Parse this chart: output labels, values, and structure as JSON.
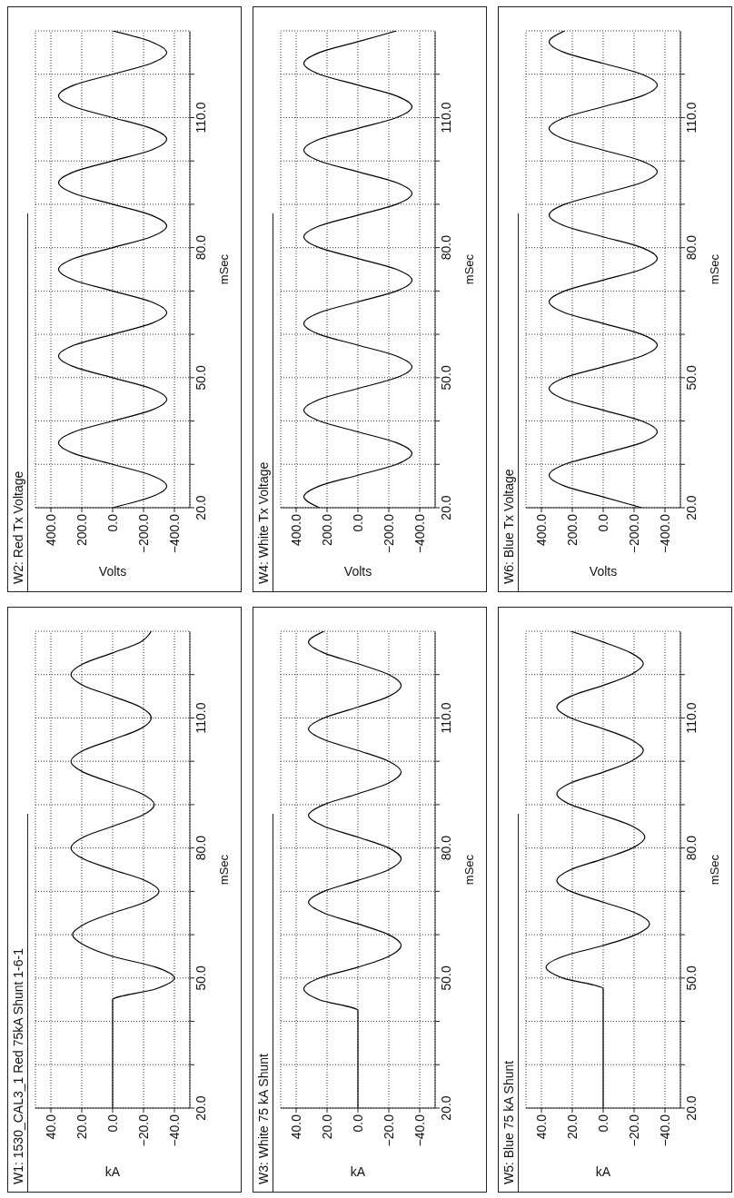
{
  "chart_data": [
    {
      "type": "line",
      "title": "W1: 1530_CAL3_1 Red 75kA Shunt 1-6-1",
      "xlabel": "kA",
      "ylabel": "mSec",
      "grid": true,
      "series": [
        {
          "color": "#000000",
          "x": [
            0,
            0,
            -28,
            -40,
            -28,
            0,
            18,
            26,
            18,
            0,
            -21,
            -30,
            -21,
            0,
            19,
            27,
            19,
            0,
            -19,
            -27,
            -19,
            0,
            19,
            27,
            19,
            0,
            -18,
            -25,
            -18,
            0,
            19,
            27,
            19,
            0,
            -18,
            -25
          ],
          "values": [
            20,
            45,
            47.5,
            50,
            52.5,
            55,
            57.5,
            60,
            62.5,
            65,
            67.5,
            70,
            72.5,
            75,
            77.5,
            80,
            82.5,
            85,
            87.5,
            90,
            92.5,
            95,
            97.5,
            100,
            102.5,
            105,
            107.5,
            110,
            112.5,
            115,
            117.5,
            120,
            122.5,
            125,
            127.5,
            130
          ]
        }
      ],
      "ylim": [
        20,
        130
      ],
      "yticks": [
        {
          "value": 20,
          "label": "20.0"
        },
        {
          "value": 30,
          "label": null
        },
        {
          "value": 40,
          "label": null
        },
        {
          "value": 50,
          "label": "50.0"
        },
        {
          "value": 60,
          "label": null
        },
        {
          "value": 70,
          "label": null
        },
        {
          "value": 80,
          "label": "80.0"
        },
        {
          "value": 90,
          "label": null
        },
        {
          "value": 100,
          "label": null
        },
        {
          "value": 110,
          "label": "110.0"
        },
        {
          "value": 120,
          "label": null
        }
      ],
      "xlim": [
        50,
        -50
      ],
      "xticks": [
        {
          "value": 40,
          "label": "40.0"
        },
        {
          "value": 20,
          "label": "20.0"
        },
        {
          "value": 0,
          "label": "0.0"
        },
        {
          "value": -20,
          "label": "−20.0"
        },
        {
          "value": -40,
          "label": "−40.0"
        }
      ]
    },
    {
      "type": "line",
      "title": "W2: Red Tx Voltage",
      "xlabel": "Volts",
      "ylabel": "mSec",
      "grid": true,
      "series": [
        {
          "color": "#000000",
          "x": [
            0,
            -250,
            -350,
            -250,
            0,
            250,
            350,
            250,
            0,
            -250,
            -350,
            -250,
            0,
            250,
            350,
            250,
            0,
            -250,
            -350,
            -250,
            0,
            250,
            350,
            250,
            0,
            -250,
            -350,
            -250,
            0,
            250,
            350,
            250,
            0,
            -250,
            -350,
            -250,
            0,
            250,
            350,
            250,
            0,
            -250,
            -350,
            -250,
            0
          ],
          "values": [
            20,
            22.5,
            25,
            27.5,
            30,
            32.5,
            35,
            37.5,
            40,
            42.5,
            45,
            47.5,
            50,
            52.5,
            55,
            57.5,
            60,
            62.5,
            65,
            67.5,
            70,
            72.5,
            75,
            77.5,
            80,
            82.5,
            85,
            87.5,
            90,
            92.5,
            95,
            97.5,
            100,
            102.5,
            105,
            107.5,
            110,
            112.5,
            115,
            117.5,
            120,
            122.5,
            125,
            127.5,
            130
          ]
        }
      ],
      "ylim": [
        20,
        130
      ],
      "yticks": [
        {
          "value": 20,
          "label": "20.0"
        },
        {
          "value": 30,
          "label": null
        },
        {
          "value": 40,
          "label": null
        },
        {
          "value": 50,
          "label": "50.0"
        },
        {
          "value": 60,
          "label": null
        },
        {
          "value": 70,
          "label": null
        },
        {
          "value": 80,
          "label": "80.0"
        },
        {
          "value": 90,
          "label": null
        },
        {
          "value": 100,
          "label": null
        },
        {
          "value": 110,
          "label": "110.0"
        },
        {
          "value": 120,
          "label": null
        }
      ],
      "xlim": [
        500,
        -500
      ],
      "xticks": [
        {
          "value": 400,
          "label": "400.0"
        },
        {
          "value": 200,
          "label": "200.0"
        },
        {
          "value": 0,
          "label": "0.0"
        },
        {
          "value": -200,
          "label": "−200.0"
        },
        {
          "value": -400,
          "label": "−400.0"
        }
      ]
    },
    {
      "type": "line",
      "title": "W3: White 75 kA Shunt",
      "xlabel": "kA",
      "ylabel": "mSec",
      "grid": true,
      "series": [
        {
          "color": "#000000",
          "x": [
            0,
            0,
            25,
            35,
            25,
            0,
            -20,
            -28,
            -20,
            0,
            22,
            32,
            22,
            0,
            -20,
            -28,
            -20,
            0,
            22,
            32,
            22,
            0,
            -20,
            -28,
            -20,
            0,
            22,
            32,
            22,
            0,
            -20,
            -28,
            -20,
            0,
            22,
            32,
            22
          ],
          "values": [
            20,
            42.5,
            45,
            47.5,
            50,
            52.5,
            55,
            57.5,
            60,
            62.5,
            65,
            67.5,
            70,
            72.5,
            75,
            77.5,
            80,
            82.5,
            85,
            87.5,
            90,
            92.5,
            95,
            97.5,
            100,
            102.5,
            105,
            107.5,
            110,
            112.5,
            115,
            117.5,
            120,
            122.5,
            125,
            127.5,
            130
          ]
        }
      ],
      "ylim": [
        20,
        130
      ],
      "yticks": [
        {
          "value": 20,
          "label": "20.0"
        },
        {
          "value": 30,
          "label": null
        },
        {
          "value": 40,
          "label": null
        },
        {
          "value": 50,
          "label": "50.0"
        },
        {
          "value": 60,
          "label": null
        },
        {
          "value": 70,
          "label": null
        },
        {
          "value": 80,
          "label": "80.0"
        },
        {
          "value": 90,
          "label": null
        },
        {
          "value": 100,
          "label": null
        },
        {
          "value": 110,
          "label": "110.0"
        },
        {
          "value": 120,
          "label": null
        }
      ],
      "xlim": [
        50,
        -50
      ],
      "xticks": [
        {
          "value": 40,
          "label": "40.0"
        },
        {
          "value": 20,
          "label": "20.0"
        },
        {
          "value": 0,
          "label": "0.0"
        },
        {
          "value": -20,
          "label": "−20.0"
        },
        {
          "value": -40,
          "label": "−40.0"
        }
      ]
    },
    {
      "type": "line",
      "title": "W4: White Tx Voltage",
      "xlabel": "Volts",
      "ylabel": "mSec",
      "grid": true,
      "series": [
        {
          "color": "#000000",
          "x": [
            250,
            350,
            250,
            0,
            -250,
            -350,
            -250,
            0,
            250,
            350,
            250,
            0,
            -250,
            -350,
            -250,
            0,
            250,
            350,
            250,
            0,
            -250,
            -350,
            -250,
            0,
            250,
            350,
            250,
            0,
            -250,
            -350,
            -250,
            0,
            250,
            350,
            250,
            0,
            -250,
            -350,
            -250,
            0,
            250,
            350,
            250,
            0,
            -250
          ],
          "values": [
            20,
            22.5,
            25,
            27.5,
            30,
            32.5,
            35,
            37.5,
            40,
            42.5,
            45,
            47.5,
            50,
            52.5,
            55,
            57.5,
            60,
            62.5,
            65,
            67.5,
            70,
            72.5,
            75,
            77.5,
            80,
            82.5,
            85,
            87.5,
            90,
            92.5,
            95,
            97.5,
            100,
            102.5,
            105,
            107.5,
            110,
            112.5,
            115,
            117.5,
            120,
            122.5,
            125,
            127.5,
            130
          ]
        }
      ],
      "ylim": [
        20,
        130
      ],
      "yticks": [
        {
          "value": 20,
          "label": "20.0"
        },
        {
          "value": 30,
          "label": null
        },
        {
          "value": 40,
          "label": null
        },
        {
          "value": 50,
          "label": "50.0"
        },
        {
          "value": 60,
          "label": null
        },
        {
          "value": 70,
          "label": null
        },
        {
          "value": 80,
          "label": "80.0"
        },
        {
          "value": 90,
          "label": null
        },
        {
          "value": 100,
          "label": null
        },
        {
          "value": 110,
          "label": "110.0"
        },
        {
          "value": 120,
          "label": null
        }
      ],
      "xlim": [
        500,
        -500
      ],
      "xticks": [
        {
          "value": 400,
          "label": "400.0"
        },
        {
          "value": 200,
          "label": "200.0"
        },
        {
          "value": 0,
          "label": "0.0"
        },
        {
          "value": -200,
          "label": "−200.0"
        },
        {
          "value": -400,
          "label": "−400.0"
        }
      ]
    },
    {
      "type": "line",
      "title": "W5: Blue 75 kA Shunt",
      "xlabel": "kA",
      "ylabel": "mSec",
      "grid": true,
      "series": [
        {
          "color": "#000000",
          "x": [
            0,
            0,
            0,
            26,
            37,
            26,
            0,
            -21,
            -30,
            -21,
            0,
            21,
            30,
            21,
            0,
            -19,
            -27,
            -19,
            0,
            21,
            30,
            21,
            0,
            -18,
            -26,
            -18,
            0,
            21,
            30,
            21,
            0,
            -18,
            -26,
            -18,
            0,
            21
          ],
          "values": [
            20,
            45,
            47.5,
            50,
            52.5,
            55,
            57.5,
            60,
            62.5,
            65,
            67.5,
            70,
            72.5,
            75,
            77.5,
            80,
            82.5,
            85,
            87.5,
            90,
            92.5,
            95,
            97.5,
            100,
            102.5,
            105,
            107.5,
            110,
            112.5,
            115,
            117.5,
            120,
            122.5,
            125,
            127.5,
            130
          ]
        }
      ],
      "ylim": [
        20,
        130
      ],
      "yticks": [
        {
          "value": 20,
          "label": "20.0"
        },
        {
          "value": 30,
          "label": null
        },
        {
          "value": 40,
          "label": null
        },
        {
          "value": 50,
          "label": "50.0"
        },
        {
          "value": 60,
          "label": null
        },
        {
          "value": 70,
          "label": null
        },
        {
          "value": 80,
          "label": "80.0"
        },
        {
          "value": 90,
          "label": null
        },
        {
          "value": 100,
          "label": null
        },
        {
          "value": 110,
          "label": "110.0"
        },
        {
          "value": 120,
          "label": null
        }
      ],
      "xlim": [
        50,
        -50
      ],
      "xticks": [
        {
          "value": 40,
          "label": "40.0"
        },
        {
          "value": 20,
          "label": "20.0"
        },
        {
          "value": 0,
          "label": "0.0"
        },
        {
          "value": -20,
          "label": "−20.0"
        },
        {
          "value": -40,
          "label": "−40.0"
        }
      ]
    },
    {
      "type": "line",
      "title": "W6: Blue Tx Voltage",
      "xlabel": "Volts",
      "ylabel": "mSec",
      "grid": true,
      "series": [
        {
          "color": "#000000",
          "x": [
            -250,
            0,
            250,
            350,
            250,
            0,
            -250,
            -350,
            -250,
            0,
            250,
            350,
            250,
            0,
            -250,
            -350,
            -250,
            0,
            250,
            350,
            250,
            0,
            -250,
            -350,
            -250,
            0,
            250,
            350,
            250,
            0,
            -250,
            -350,
            -250,
            0,
            250,
            350,
            250,
            0,
            -250,
            -350,
            -250,
            0,
            250,
            350,
            250
          ],
          "values": [
            20,
            22.5,
            25,
            27.5,
            30,
            32.5,
            35,
            37.5,
            40,
            42.5,
            45,
            47.5,
            50,
            52.5,
            55,
            57.5,
            60,
            62.5,
            65,
            67.5,
            70,
            72.5,
            75,
            77.5,
            80,
            82.5,
            85,
            87.5,
            90,
            92.5,
            95,
            97.5,
            100,
            102.5,
            105,
            107.5,
            110,
            112.5,
            115,
            117.5,
            120,
            122.5,
            125,
            127.5,
            130
          ]
        }
      ],
      "ylim": [
        20,
        130
      ],
      "yticks": [
        {
          "value": 20,
          "label": "20.0"
        },
        {
          "value": 30,
          "label": null
        },
        {
          "value": 40,
          "label": null
        },
        {
          "value": 50,
          "label": "50.0"
        },
        {
          "value": 60,
          "label": null
        },
        {
          "value": 70,
          "label": null
        },
        {
          "value": 80,
          "label": "80.0"
        },
        {
          "value": 90,
          "label": null
        },
        {
          "value": 100,
          "label": null
        },
        {
          "value": 110,
          "label": "110.0"
        },
        {
          "value": 120,
          "label": null
        }
      ],
      "xlim": [
        500,
        -500
      ],
      "xticks": [
        {
          "value": 400,
          "label": "400.0"
        },
        {
          "value": 200,
          "label": "200.0"
        },
        {
          "value": 0,
          "label": "0.0"
        },
        {
          "value": -200,
          "label": "−200.0"
        },
        {
          "value": -400,
          "label": "−400.0"
        }
      ]
    }
  ]
}
